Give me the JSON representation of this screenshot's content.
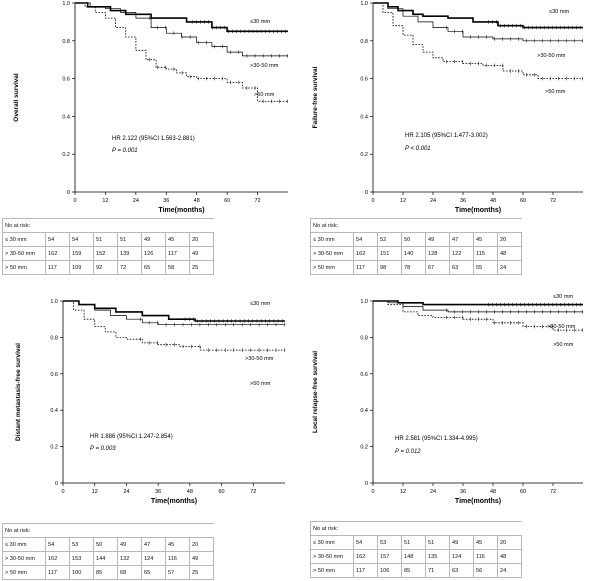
{
  "panels": [
    {
      "id": "overall",
      "ylabel": "Overall survival",
      "xlabel": "Time(months)",
      "hr_text": "HR 2.122 (95%CI 1.563-2.881)",
      "p_text": "P = 0.001",
      "curve_labels": [
        "≤30 mm",
        ">30-50 mm",
        ">50 mm"
      ],
      "risk_header": "No at risk:",
      "risk_rows": [
        {
          "label": "≤ 30 mm",
          "values": [
            "54",
            "54",
            "51",
            "51",
            "49",
            "45",
            "20"
          ]
        },
        {
          "label": "> 30-50 mm",
          "values": [
            "162",
            "159",
            "152",
            "139",
            "126",
            "117",
            "49"
          ]
        },
        {
          "label": "> 50 mm",
          "values": [
            "117",
            "109",
            "92",
            "72",
            "65",
            "58",
            "25"
          ]
        }
      ]
    },
    {
      "id": "failure-free",
      "ylabel": "Failure-free survival",
      "xlabel": "Time(months)",
      "hr_text": "HR 2.105 (95%CI 1.477-3.002)",
      "p_text": "P < 0.001",
      "curve_labels": [
        "≤30 mm",
        ">30-50 mm",
        ">50 mm"
      ],
      "risk_header": "No at risk:",
      "risk_rows": [
        {
          "label": "≤ 30 mm",
          "values": [
            "54",
            "52",
            "50",
            "49",
            "47",
            "45",
            "20"
          ]
        },
        {
          "label": "> 30-50 mm",
          "values": [
            "162",
            "151",
            "140",
            "128",
            "122",
            "115",
            "48"
          ]
        },
        {
          "label": "> 50 mm",
          "values": [
            "117",
            "98",
            "78",
            "67",
            "63",
            "55",
            "24"
          ]
        }
      ]
    },
    {
      "id": "distant-metastasis-free",
      "ylabel": "Distant metastasis-free survival",
      "xlabel": "Time(months)",
      "hr_text": "HR 1.886 (95%CI 1.247-2.854)",
      "p_text": "P = 0.003",
      "curve_labels": [
        "≤30 mm",
        ">30-50 mm",
        ">50 mm"
      ],
      "risk_header": "No at risk:",
      "risk_rows": [
        {
          "label": "≤ 30 mm",
          "values": [
            "54",
            "53",
            "50",
            "49",
            "47",
            "45",
            "20"
          ]
        },
        {
          "label": "> 30-50 mm",
          "values": [
            "162",
            "153",
            "144",
            "132",
            "124",
            "116",
            "49"
          ]
        },
        {
          "label": "> 50 mm",
          "values": [
            "117",
            "100",
            "85",
            "68",
            "65",
            "57",
            "25"
          ]
        }
      ]
    },
    {
      "id": "local-relapse-free",
      "ylabel": "Local relapse-free survival",
      "xlabel": "Time(months)",
      "hr_text": "HR 2.581 (95%CI 1.334-4.995)",
      "p_text": "P = 0.012",
      "curve_labels": [
        "≤30 mm",
        ">30-50 mm",
        ">50 mm"
      ],
      "risk_header": "No at risk:",
      "risk_rows": [
        {
          "label": "≤ 30 mm",
          "values": [
            "54",
            "53",
            "51",
            "51",
            "49",
            "45",
            "20"
          ]
        },
        {
          "label": "> 30-50 mm",
          "values": [
            "162",
            "157",
            "148",
            "135",
            "124",
            "116",
            "48"
          ]
        },
        {
          "label": "> 50 mm",
          "values": [
            "117",
            "106",
            "85",
            "71",
            "63",
            "56",
            "24"
          ]
        }
      ]
    }
  ],
  "chart_data": [
    {
      "type": "line",
      "title": "Overall survival",
      "xlabel": "Time(months)",
      "ylabel": "Overall survival",
      "xlim": [
        0,
        84
      ],
      "ylim": [
        0,
        1.0
      ],
      "xticks": [
        0,
        12,
        24,
        36,
        48,
        60,
        72
      ],
      "yticks": [
        0,
        0.2,
        0.4,
        0.6,
        0.8,
        1.0
      ],
      "series": [
        {
          "name": "≤30 mm",
          "style": "thick",
          "x": [
            0,
            5,
            10,
            14,
            20,
            24,
            30,
            36,
            44,
            54,
            60,
            84
          ],
          "y": [
            1.0,
            0.98,
            0.98,
            0.96,
            0.94,
            0.94,
            0.92,
            0.92,
            0.9,
            0.87,
            0.85,
            0.85
          ]
        },
        {
          "name": ">30-50 mm",
          "style": "thin",
          "x": [
            0,
            6,
            12,
            18,
            24,
            30,
            36,
            42,
            48,
            54,
            60,
            66,
            84
          ],
          "y": [
            1.0,
            0.98,
            0.97,
            0.95,
            0.92,
            0.87,
            0.84,
            0.82,
            0.79,
            0.77,
            0.74,
            0.72,
            0.72
          ]
        },
        {
          "name": ">50 mm",
          "style": "dashed",
          "x": [
            0,
            4,
            8,
            12,
            16,
            20,
            24,
            28,
            32,
            36,
            40,
            44,
            48,
            54,
            60,
            66,
            72,
            84
          ],
          "y": [
            1.0,
            0.98,
            0.95,
            0.92,
            0.87,
            0.82,
            0.75,
            0.7,
            0.66,
            0.65,
            0.63,
            0.61,
            0.6,
            0.6,
            0.58,
            0.55,
            0.48,
            0.48
          ]
        }
      ],
      "annotations": [
        "HR 2.122 (95%CI 1.563-2.881)",
        "P = 0.001"
      ]
    },
    {
      "type": "line",
      "title": "Failure-free survival",
      "xlabel": "Time(months)",
      "ylabel": "Failure-free survival",
      "xlim": [
        0,
        84
      ],
      "ylim": [
        0,
        1.0
      ],
      "xticks": [
        0,
        12,
        24,
        36,
        48,
        60,
        72
      ],
      "yticks": [
        0,
        0.2,
        0.4,
        0.6,
        0.8,
        1.0
      ],
      "series": [
        {
          "name": "≤30 mm",
          "style": "thick",
          "x": [
            0,
            6,
            10,
            16,
            20,
            30,
            40,
            50,
            60,
            84
          ],
          "y": [
            1.0,
            0.98,
            0.96,
            0.94,
            0.93,
            0.92,
            0.9,
            0.88,
            0.87,
            0.87
          ]
        },
        {
          "name": ">30-50 mm",
          "style": "thin",
          "x": [
            0,
            6,
            12,
            18,
            24,
            30,
            36,
            48,
            60,
            84
          ],
          "y": [
            1.0,
            0.97,
            0.93,
            0.9,
            0.87,
            0.85,
            0.82,
            0.81,
            0.8,
            0.8
          ]
        },
        {
          "name": ">50 mm",
          "style": "dashed",
          "x": [
            0,
            4,
            8,
            12,
            16,
            20,
            24,
            28,
            36,
            44,
            52,
            60,
            66,
            84
          ],
          "y": [
            1.0,
            0.95,
            0.88,
            0.83,
            0.78,
            0.74,
            0.71,
            0.69,
            0.68,
            0.67,
            0.64,
            0.62,
            0.6,
            0.6
          ]
        }
      ],
      "annotations": [
        "HR 2.105 (95%CI 1.477-3.002)",
        "P < 0.001"
      ]
    },
    {
      "type": "line",
      "title": "Distant metastasis-free survival",
      "xlabel": "Time(months)",
      "ylabel": "Distant metastasis-free survival",
      "xlim": [
        0,
        84
      ],
      "ylim": [
        0,
        1.0
      ],
      "xticks": [
        0,
        12,
        24,
        36,
        48,
        60,
        72
      ],
      "yticks": [
        0,
        0.2,
        0.4,
        0.6,
        0.8,
        1.0
      ],
      "series": [
        {
          "name": "≤30 mm",
          "style": "thick",
          "x": [
            0,
            6,
            12,
            20,
            30,
            40,
            50,
            84
          ],
          "y": [
            1.0,
            0.98,
            0.96,
            0.94,
            0.92,
            0.9,
            0.89,
            0.89
          ]
        },
        {
          "name": ">30-50 mm",
          "style": "thin",
          "x": [
            0,
            6,
            12,
            18,
            24,
            30,
            36,
            48,
            84
          ],
          "y": [
            1.0,
            0.98,
            0.95,
            0.92,
            0.9,
            0.88,
            0.87,
            0.87,
            0.87
          ]
        },
        {
          "name": ">50 mm",
          "style": "dashed",
          "x": [
            0,
            4,
            8,
            12,
            16,
            20,
            24,
            30,
            36,
            44,
            52,
            60,
            84
          ],
          "y": [
            1.0,
            0.95,
            0.9,
            0.86,
            0.83,
            0.8,
            0.79,
            0.77,
            0.76,
            0.75,
            0.73,
            0.73,
            0.73
          ]
        }
      ],
      "annotations": [
        "HR 1.886 (95%CI 1.247-2.854)",
        "P = 0.003"
      ]
    },
    {
      "type": "line",
      "title": "Local relapse-free survival",
      "xlabel": "Time(months)",
      "ylabel": "Local relapse-free survival",
      "xlim": [
        0,
        84
      ],
      "ylim": [
        0,
        1.0
      ],
      "xticks": [
        0,
        12,
        24,
        36,
        48,
        60,
        72
      ],
      "yticks": [
        0,
        0.2,
        0.4,
        0.6,
        0.8,
        1.0
      ],
      "series": [
        {
          "name": "≤30 mm",
          "style": "thick",
          "x": [
            0,
            10,
            20,
            40,
            84
          ],
          "y": [
            1.0,
            0.99,
            0.98,
            0.98,
            0.98
          ]
        },
        {
          "name": ">30-50 mm",
          "style": "thin",
          "x": [
            0,
            6,
            12,
            20,
            30,
            40,
            84
          ],
          "y": [
            1.0,
            0.99,
            0.97,
            0.95,
            0.94,
            0.94,
            0.94
          ]
        },
        {
          "name": ">50 mm",
          "style": "dashed",
          "x": [
            0,
            6,
            12,
            18,
            24,
            36,
            48,
            60,
            72,
            84
          ],
          "y": [
            1.0,
            0.98,
            0.94,
            0.92,
            0.91,
            0.9,
            0.88,
            0.86,
            0.84,
            0.84
          ]
        }
      ],
      "annotations": [
        "HR 2.581 (95%CI 1.334-4.995)",
        "P = 0.012"
      ]
    }
  ]
}
